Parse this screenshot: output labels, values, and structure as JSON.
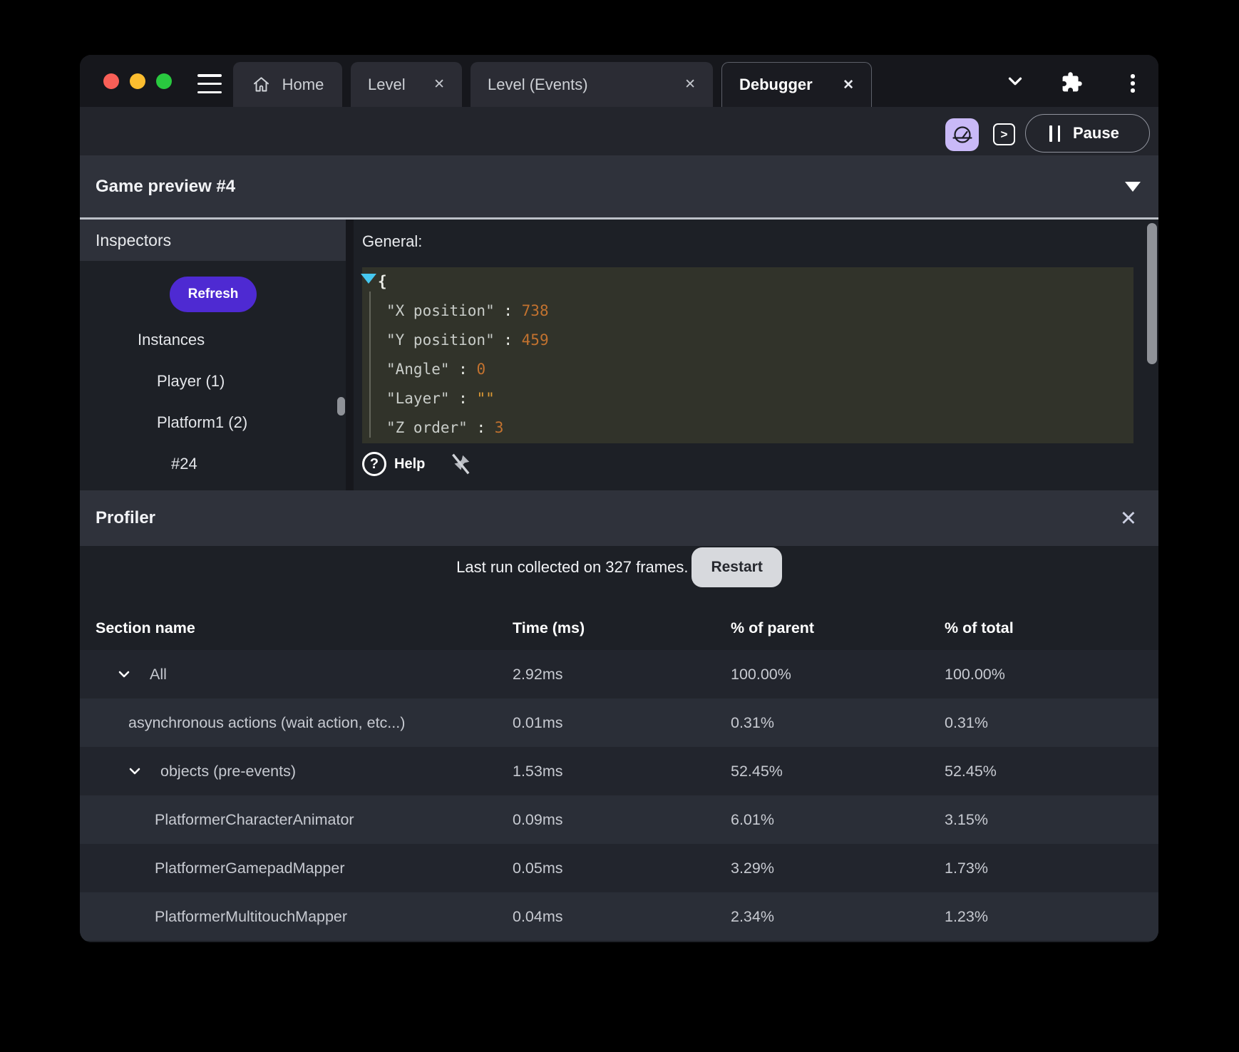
{
  "window": {
    "tabs": [
      {
        "label": "Home",
        "icon": "home-icon",
        "closable": false,
        "active": false
      },
      {
        "label": "Level",
        "closable": true,
        "active": false
      },
      {
        "label": "Level (Events)",
        "closable": true,
        "active": false
      },
      {
        "label": "Debugger",
        "closable": true,
        "active": true
      }
    ],
    "toolbar": {
      "pause_label": "Pause",
      "console_prompt": ">"
    },
    "preview_title": "Game preview #4"
  },
  "inspectors": {
    "title": "Inspectors",
    "refresh_label": "Refresh",
    "tree": [
      {
        "label": "Instances",
        "depth": 0
      },
      {
        "label": "Player (1)",
        "depth": 1
      },
      {
        "label": "Platform1 (2)",
        "depth": 1
      },
      {
        "label": "#24",
        "depth": 2
      }
    ]
  },
  "general": {
    "title": "General:",
    "help_label": "Help",
    "json_lines": [
      {
        "brace": "{"
      },
      {
        "key": "\"X position\"",
        "colon": " : ",
        "value": "738",
        "kind": "number"
      },
      {
        "key": "\"Y position\"",
        "colon": " : ",
        "value": "459",
        "kind": "number"
      },
      {
        "key": "\"Angle\"",
        "colon": " : ",
        "value": "0",
        "kind": "number"
      },
      {
        "key": "\"Layer\"",
        "colon": " : ",
        "value": "\"\"",
        "kind": "string"
      },
      {
        "key": "\"Z order\"",
        "colon": " : ",
        "value": "3",
        "kind": "number"
      }
    ]
  },
  "profiler": {
    "title": "Profiler",
    "close_glyph": "✕",
    "status_text": "Last run collected on 327 frames.",
    "restart_label": "Restart",
    "table": {
      "columns": [
        "Section name",
        "Time (ms)",
        "% of parent",
        "% of total"
      ],
      "rows": [
        {
          "name": "All",
          "time": "2.92ms",
          "parent": "100.00%",
          "total": "100.00%",
          "depth": 0,
          "expandable": true
        },
        {
          "name": "asynchronous actions (wait action, etc...)",
          "time": "0.01ms",
          "parent": "0.31%",
          "total": "0.31%",
          "depth": 1,
          "expandable": false
        },
        {
          "name": "objects (pre-events)",
          "time": "1.53ms",
          "parent": "52.45%",
          "total": "52.45%",
          "depth": 1,
          "expandable": true
        },
        {
          "name": "PlatformerCharacterAnimator",
          "time": "0.09ms",
          "parent": "6.01%",
          "total": "3.15%",
          "depth": 2,
          "expandable": false
        },
        {
          "name": "PlatformerGamepadMapper",
          "time": "0.05ms",
          "parent": "3.29%",
          "total": "1.73%",
          "depth": 2,
          "expandable": false
        },
        {
          "name": "PlatformerMultitouchMapper",
          "time": "0.04ms",
          "parent": "2.34%",
          "total": "1.23%",
          "depth": 2,
          "expandable": false
        }
      ]
    }
  },
  "icons": {
    "tab_close": "✕",
    "help_glyph": "?"
  },
  "colors": {
    "refresh_purple": "#4e2ad2",
    "debug_button_lavender": "#c9b9f7",
    "code_background_olive": "#31332a",
    "json_number_orange": "#c2722f",
    "json_string_orange": "#dd9a35",
    "traffic_red": "#f95f57",
    "traffic_yellow": "#fcbd2f",
    "traffic_green": "#29c93f",
    "band_gray": "#2f323b",
    "panel_dark": "#1d2026"
  }
}
